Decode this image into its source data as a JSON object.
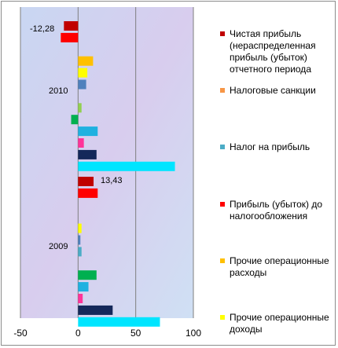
{
  "chart_data": {
    "type": "bar",
    "orientation": "horizontal",
    "title": "",
    "xlabel": "",
    "ylabel": "",
    "xlim": [
      -50,
      100
    ],
    "xticks": [
      "-50",
      "0",
      "50",
      "100"
    ],
    "grid": "vertical",
    "legend_position": "right",
    "categories": [
      "2010",
      "2009"
    ],
    "series": [
      {
        "name": "Чистая прибыль (нераспределенная прибыль (убыток) отчетного периода",
        "color": "#c00000",
        "values": [
          -12.28,
          13.43
        ]
      },
      {
        "name": "",
        "color": "#ff0000",
        "values": [
          -15,
          17
        ]
      },
      {
        "name": "Налоговые санкции",
        "color": "#f79646",
        "values": [
          null,
          null
        ]
      },
      {
        "name": "",
        "color": "#ffc000",
        "values": [
          13,
          null
        ]
      },
      {
        "name": "",
        "color": "#ffff00",
        "values": [
          8,
          3
        ]
      },
      {
        "name": "",
        "color": "#4f81bd",
        "values": [
          7,
          2
        ]
      },
      {
        "name": "Налог на прибыль",
        "color": "#4bacc6",
        "values": [
          null,
          3
        ]
      },
      {
        "name": "",
        "color": "#92d050",
        "values": [
          3,
          null
        ]
      },
      {
        "name": "",
        "color": "#00b050",
        "values": [
          -6,
          16
        ]
      },
      {
        "name": "",
        "color": "#1fb1e0",
        "values": [
          17,
          9
        ]
      },
      {
        "name": "",
        "color": "#ff3399",
        "values": [
          5,
          4
        ]
      },
      {
        "name": "",
        "color": "#14285a",
        "values": [
          16,
          30
        ]
      },
      {
        "name": "",
        "color": "#00e5ff",
        "values": [
          84,
          71
        ]
      }
    ],
    "data_labels": [
      {
        "category": "2010",
        "value_text": "-12,28"
      },
      {
        "category": "2009",
        "value_text": "13,43"
      }
    ]
  },
  "legend": {
    "items": [
      {
        "label": "Чистая прибыль (нераспределенная прибыль  (убыток) отчетного периода",
        "color": "#c00000"
      },
      {
        "label": "Налоговые санкции",
        "color": "#f79646"
      },
      {
        "label": "Налог на прибыль",
        "color": "#4bacc6"
      },
      {
        "label": "Прибыль (убыток) до налогообложения",
        "color": "#ff0000"
      },
      {
        "label": "Прочие операционные расходы",
        "color": "#ffc000"
      },
      {
        "label": "Прочие операционные доходы",
        "color": "#ffff00"
      }
    ]
  }
}
